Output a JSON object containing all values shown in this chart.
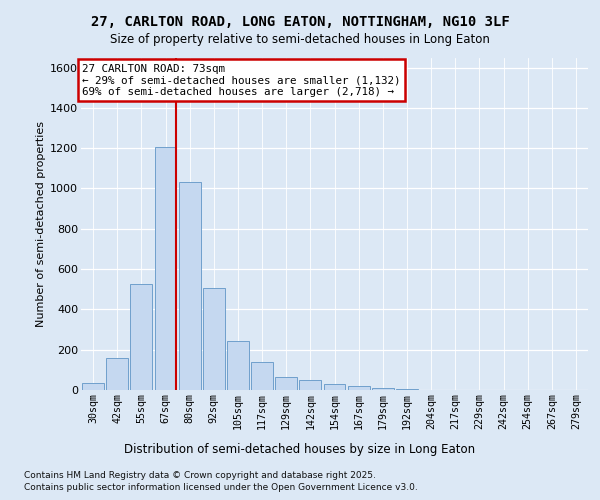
{
  "title_line1": "27, CARLTON ROAD, LONG EATON, NOTTINGHAM, NG10 3LF",
  "title_line2": "Size of property relative to semi-detached houses in Long Eaton",
  "xlabel": "Distribution of semi-detached houses by size in Long Eaton",
  "ylabel": "Number of semi-detached properties",
  "categories": [
    "30sqm",
    "42sqm",
    "55sqm",
    "67sqm",
    "80sqm",
    "92sqm",
    "105sqm",
    "117sqm",
    "129sqm",
    "142sqm",
    "154sqm",
    "167sqm",
    "179sqm",
    "192sqm",
    "204sqm",
    "217sqm",
    "229sqm",
    "242sqm",
    "254sqm",
    "267sqm",
    "279sqm"
  ],
  "values": [
    35,
    160,
    525,
    1205,
    1030,
    505,
    245,
    140,
    65,
    50,
    30,
    20,
    10,
    5,
    0,
    0,
    0,
    0,
    0,
    0,
    0
  ],
  "bar_color": "#c5d8f0",
  "bar_edge_color": "#6fa0cc",
  "vline_color": "#cc0000",
  "vline_bar_index": 3,
  "annotation_title": "27 CARLTON ROAD: 73sqm",
  "annotation_line1": "← 29% of semi-detached houses are smaller (1,132)",
  "annotation_line2": "69% of semi-detached houses are larger (2,718) →",
  "ylim": [
    0,
    1650
  ],
  "yticks": [
    0,
    200,
    400,
    600,
    800,
    1000,
    1200,
    1400,
    1600
  ],
  "footnote_line1": "Contains HM Land Registry data © Crown copyright and database right 2025.",
  "footnote_line2": "Contains public sector information licensed under the Open Government Licence v3.0.",
  "bg_color": "#dce8f5",
  "grid_color": "#ffffff"
}
